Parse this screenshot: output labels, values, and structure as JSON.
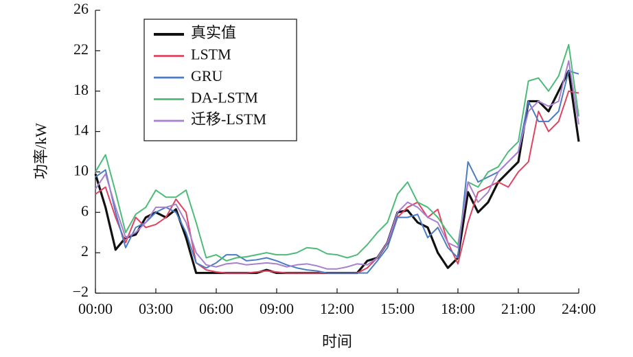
{
  "chart_data": {
    "type": "line",
    "x_label": "时间",
    "y_label": "功率/kW",
    "x": [
      0,
      0.5,
      1,
      1.5,
      2,
      2.5,
      3,
      3.5,
      4,
      4.5,
      5,
      5.5,
      6,
      6.5,
      7,
      7.5,
      8,
      8.5,
      9,
      9.5,
      10,
      10.5,
      11,
      11.5,
      12,
      12.5,
      13,
      13.5,
      14,
      14.5,
      15,
      15.5,
      16,
      16.5,
      17,
      17.5,
      18,
      18.5,
      19,
      19.5,
      20,
      20.5,
      21,
      21.5,
      22,
      22.5,
      23,
      23.5,
      24
    ],
    "series": [
      {
        "name": "真实值",
        "color": "#111111",
        "width": 3.2,
        "values": [
          9.8,
          6.5,
          2.3,
          3.5,
          3.8,
          5.5,
          6,
          5.5,
          6.3,
          3.5,
          0,
          0,
          0,
          0,
          0,
          0,
          0,
          0.3,
          0,
          0,
          0,
          0,
          0,
          0,
          0,
          0,
          0,
          1.2,
          1.5,
          3,
          6,
          6.2,
          5,
          4.5,
          2,
          0.5,
          1.5,
          8,
          6,
          7,
          9,
          10,
          11,
          17,
          17,
          16,
          18,
          20,
          13
        ]
      },
      {
        "name": "LSTM",
        "color": "#e0425f",
        "width": 2,
        "values": [
          7.8,
          8.5,
          5.5,
          3,
          5.5,
          4.5,
          4.8,
          5.5,
          7.3,
          6,
          1,
          0.3,
          0.1,
          0,
          0,
          0,
          0.1,
          0.2,
          0.1,
          0,
          0,
          0,
          0,
          0,
          0,
          0,
          0,
          0.5,
          1.5,
          3,
          5.5,
          6.5,
          7,
          5.5,
          6.3,
          3,
          0.9,
          5,
          8,
          8.5,
          9,
          8.5,
          10,
          11,
          16,
          14,
          15,
          18,
          17.8
        ]
      },
      {
        "name": "GRU",
        "color": "#4a7cc4",
        "width": 2,
        "values": [
          9.5,
          10.2,
          6,
          2.5,
          4.5,
          5,
          6,
          6.5,
          6,
          4,
          1,
          0.5,
          1,
          1.8,
          1.8,
          1.2,
          1.3,
          1.5,
          1.2,
          0.8,
          0.5,
          0.3,
          0.2,
          0,
          0,
          0,
          0,
          0,
          1.2,
          2.5,
          5.5,
          5.5,
          5.8,
          3.5,
          4.5,
          2.5,
          1.5,
          11,
          9,
          9.5,
          10,
          11,
          12,
          17,
          15,
          15,
          16,
          20,
          19.7
        ]
      },
      {
        "name": "DA-LSTM",
        "color": "#4cbb78",
        "width": 2,
        "values": [
          10,
          11.7,
          8,
          4,
          5.8,
          6.5,
          8.2,
          7.5,
          7.5,
          8.2,
          5,
          1.5,
          1.8,
          1.2,
          1.5,
          1.6,
          1.8,
          2,
          1.8,
          1.8,
          2,
          2.5,
          2.4,
          1.9,
          1.8,
          1.5,
          1.8,
          2.8,
          4,
          5,
          7.8,
          9,
          7,
          6.5,
          5.5,
          4,
          2.8,
          9,
          8.5,
          10,
          10.5,
          12,
          13,
          19,
          19.3,
          18,
          19.5,
          22.6,
          15.5
        ]
      },
      {
        "name": "迁移-LSTM",
        "color": "#a77fcf",
        "width": 2,
        "values": [
          8.3,
          9.8,
          6.5,
          3.5,
          4,
          5,
          6.5,
          6.5,
          6.8,
          5,
          2,
          0.8,
          0.6,
          0.9,
          1,
          0.8,
          0.9,
          1,
          0.9,
          0.6,
          0.8,
          0.9,
          0.7,
          0.4,
          0.4,
          0.6,
          0.9,
          0.8,
          1.5,
          3,
          6,
          7,
          6.5,
          5.5,
          5,
          3,
          2.5,
          9,
          7,
          8,
          10,
          11,
          12,
          16,
          17,
          16.5,
          17,
          21,
          14.7
        ]
      }
    ],
    "xlim": [
      0,
      24
    ],
    "xticks": [
      {
        "value": 0,
        "label": "00:00"
      },
      {
        "value": 3,
        "label": "03:00"
      },
      {
        "value": 6,
        "label": "06:00"
      },
      {
        "value": 9,
        "label": "09:00"
      },
      {
        "value": 12,
        "label": "12:00"
      },
      {
        "value": 15,
        "label": "15:00"
      },
      {
        "value": 18,
        "label": "18:00"
      },
      {
        "value": 21,
        "label": "21:00"
      },
      {
        "value": 24,
        "label": "24:00"
      }
    ],
    "ylim": [
      -2,
      26
    ],
    "yticks": [
      {
        "value": -2,
        "label": "−2"
      },
      2,
      6,
      10,
      14,
      18,
      22,
      26
    ]
  }
}
